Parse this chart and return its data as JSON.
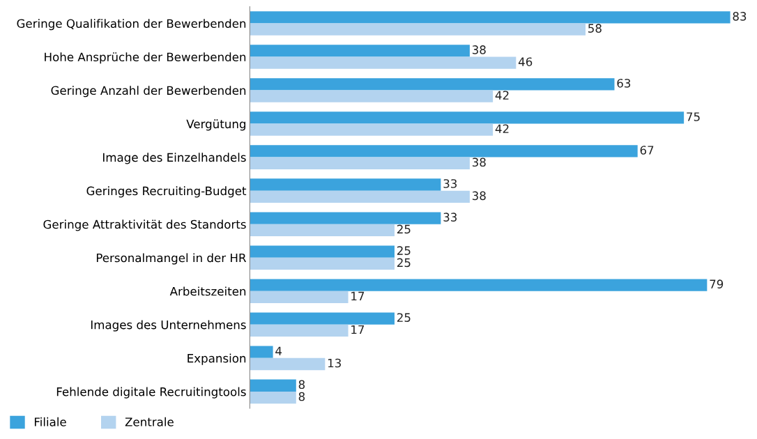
{
  "chart_data": {
    "type": "bar",
    "orientation": "horizontal",
    "categories": [
      "Geringe Qualifikation der Bewerbenden",
      "Hohe Ansprüche der Bewerbenden",
      "Geringe Anzahl der Bewerbenden",
      "Vergütung",
      "Image des Einzelhandels",
      "Geringes Recruiting-Budget",
      "Geringe Attraktivität des Standorts",
      "Personalmangel in der HR",
      "Arbeitszeiten",
      "Images des Unternehmens",
      "Expansion",
      "Fehlende digitale Recruitingtools"
    ],
    "series": [
      {
        "name": "Filiale",
        "color": "#3ba3dd",
        "values": [
          83,
          38,
          63,
          75,
          67,
          33,
          33,
          25,
          79,
          25,
          4,
          8
        ]
      },
      {
        "name": "Zentrale",
        "color": "#b3d3ef",
        "values": [
          58,
          46,
          42,
          42,
          38,
          38,
          25,
          25,
          17,
          17,
          13,
          8
        ]
      }
    ],
    "data_labels": true,
    "legend": "bottom left",
    "grid": false,
    "tick_labels": "y"
  }
}
